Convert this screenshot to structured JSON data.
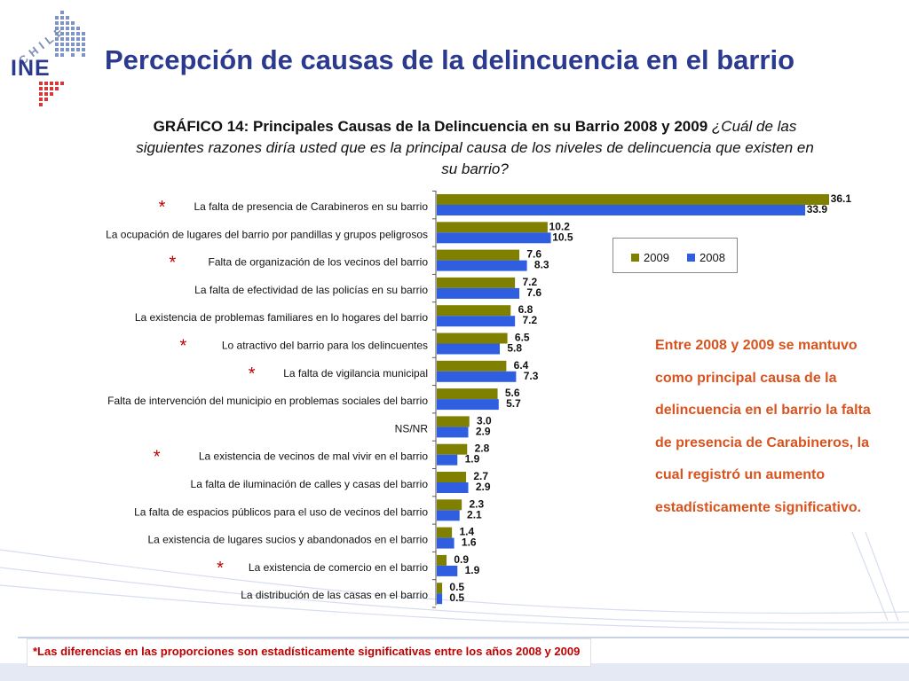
{
  "logo": {
    "text_arc": "CHILE",
    "text_main": "INE"
  },
  "title": "Percepción de causas de la delincuencia en el barrio",
  "subtitle": {
    "bold": "GRÁFICO 14: Principales Causas de la Delincuencia en su Barrio 2008 y 2009",
    "italic": "¿Cuál de las siguientes razones diría usted que es la principal causa de los niveles de delincuencia que existen en su barrio?"
  },
  "annotation": "Entre 2008 y 2009 se mantuvo como principal causa de la delincuencia en el barrio la falta de presencia de Carabineros, la cual registró un aumento estadísticamente significativo.",
  "footer_note": "*Las diferencias en las proporciones son estadísticamente significativas entre los años 2008 y 2009",
  "chart_data": {
    "type": "bar",
    "orientation": "horizontal",
    "title": "GRÁFICO 14: Principales Causas de la Delincuencia en su Barrio 2008 y 2009",
    "categories": [
      "La falta de presencia de Carabineros en su barrio",
      "La ocupación de lugares del barrio por pandillas y grupos peligrosos",
      "Falta de organización de los vecinos del barrio",
      "La falta de efectividad de las policías en su barrio",
      "La existencia de problemas familiares en lo hogares del barrio",
      "Lo atractivo del barrio para los delincuentes",
      "La falta de vigilancia municipal",
      "Falta de intervención del municipio en problemas sociales del barrio",
      "NS/NR",
      "La existencia de vecinos de mal vivir en el barrio",
      "La falta de iluminación de calles y casas del barrio",
      "La falta de espacios públicos para el uso de vecinos del barrio",
      "La existencia de lugares sucios y abandonados en el barrio",
      "La existencia de comercio en el barrio",
      "La distribución de las casas en el barrio"
    ],
    "significant": [
      true,
      false,
      true,
      false,
      false,
      true,
      true,
      false,
      false,
      true,
      false,
      false,
      false,
      true,
      false
    ],
    "significance_marker": "*",
    "series": [
      {
        "name": "2009",
        "color": "#808000",
        "values": [
          36.1,
          10.2,
          7.6,
          7.2,
          6.8,
          6.5,
          6.4,
          5.6,
          3.0,
          2.8,
          2.7,
          2.3,
          1.4,
          0.9,
          0.5
        ]
      },
      {
        "name": "2008",
        "color": "#2f5fe0",
        "values": [
          33.9,
          10.5,
          8.3,
          7.6,
          7.2,
          5.8,
          7.3,
          5.7,
          2.9,
          1.9,
          2.9,
          2.1,
          1.6,
          1.9,
          0.5
        ]
      }
    ],
    "value_format": "one-decimal",
    "xlim": [
      0,
      40
    ],
    "grid": false,
    "legend_position": "top-right"
  }
}
